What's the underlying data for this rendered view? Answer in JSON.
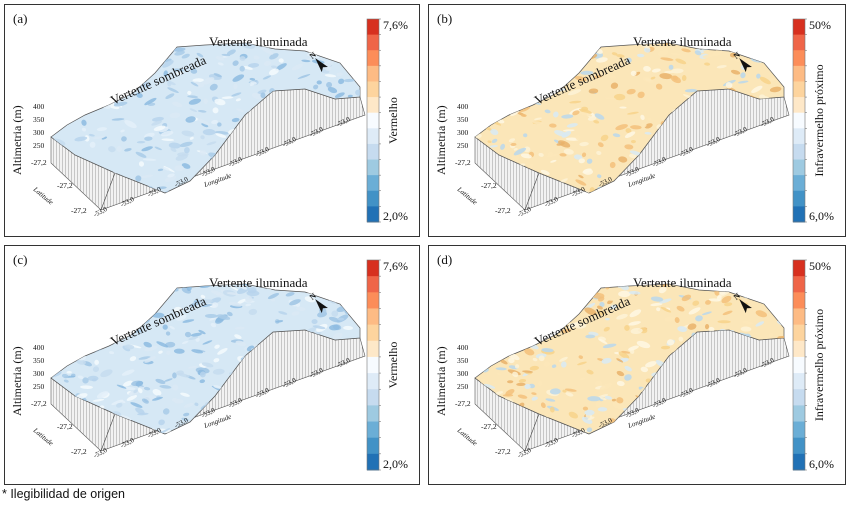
{
  "panels": [
    {
      "letter": "(a)",
      "slope_shaded": "Vertente sombreada",
      "slope_lit": "Vertente iluminada",
      "band": "Vermelho",
      "scale_max": "7,6%",
      "scale_min": "2,0%",
      "palette": "red",
      "y_axis": "Altimetria (m)",
      "alt_ticks": [
        "400",
        "350",
        "300",
        "250"
      ],
      "lat_label": "Latitude",
      "lat_ticks": [
        "-27,2",
        "-27,2",
        "-27,2"
      ],
      "lon_label": "Longitude",
      "lon_ticks": [
        "-53,0",
        "-53,0",
        "-53,0",
        "-53,0",
        "-53,0",
        "-53,0",
        "-53,0",
        "-53,0",
        "-53,0",
        "-53,0"
      ],
      "north": "N"
    },
    {
      "letter": "(b)",
      "slope_shaded": "Vertente sombreada",
      "slope_lit": "Vertente iluminada",
      "band": "Infravermelho próximo",
      "scale_max": "50%",
      "scale_min": "6,0%",
      "palette": "nir",
      "y_axis": "Altimetria (m)",
      "alt_ticks": [
        "400",
        "350",
        "300",
        "250"
      ],
      "lat_label": "Latitude",
      "lat_ticks": [
        "-27,2",
        "-27,2",
        "-27,2"
      ],
      "lon_label": "Longitude",
      "lon_ticks": [
        "-53,0",
        "-53,0",
        "-53,0",
        "-53,0",
        "-53,0",
        "-53,0",
        "-53,0",
        "-53,0",
        "-53,0",
        "-53,0"
      ],
      "north": "N"
    },
    {
      "letter": "(c)",
      "slope_shaded": "Vertente sombreada",
      "slope_lit": "Vertente iluminada",
      "band": "Vermelho",
      "scale_max": "7,6%",
      "scale_min": "2,0%",
      "palette": "red",
      "y_axis": "Altimetria (m)",
      "alt_ticks": [
        "400",
        "350",
        "300",
        "250"
      ],
      "lat_label": "Latitude",
      "lat_ticks": [
        "-27,2",
        "-27,2",
        "-27,2"
      ],
      "lon_label": "Longitude",
      "lon_ticks": [
        "-53,0",
        "-53,0",
        "-53,0",
        "-53,0",
        "-53,0",
        "-53,0",
        "-53,0",
        "-53,0",
        "-53,0",
        "-53,0"
      ],
      "north": "N"
    },
    {
      "letter": "(d)",
      "slope_shaded": "Vertente sombreada",
      "slope_lit": "Vertente iluminada",
      "band": "Infravermelho próximo",
      "scale_max": "50%",
      "scale_min": "6,0%",
      "palette": "nir",
      "y_axis": "Altimetria (m)",
      "alt_ticks": [
        "400",
        "350",
        "300",
        "250"
      ],
      "lat_label": "Latitude",
      "lat_ticks": [
        "-27,2",
        "-27,2",
        "-27,2"
      ],
      "lon_label": "Longitude",
      "lon_ticks": [
        "-53,0",
        "-53,0",
        "-53,0",
        "-53,0",
        "-53,0",
        "-53,0",
        "-53,0",
        "-53,0",
        "-53,0",
        "-53,0"
      ],
      "north": "N"
    }
  ],
  "colorbar_colors": [
    "#d7301f",
    "#ef6548",
    "#fc8d59",
    "#fdbb84",
    "#fdd49e",
    "#fee8c8",
    "#f7fbff",
    "#deebf7",
    "#c6dbef",
    "#9ecae1",
    "#6baed6",
    "#4292c6",
    "#2171b5"
  ],
  "footnote": "* Ilegibilidad de origen"
}
